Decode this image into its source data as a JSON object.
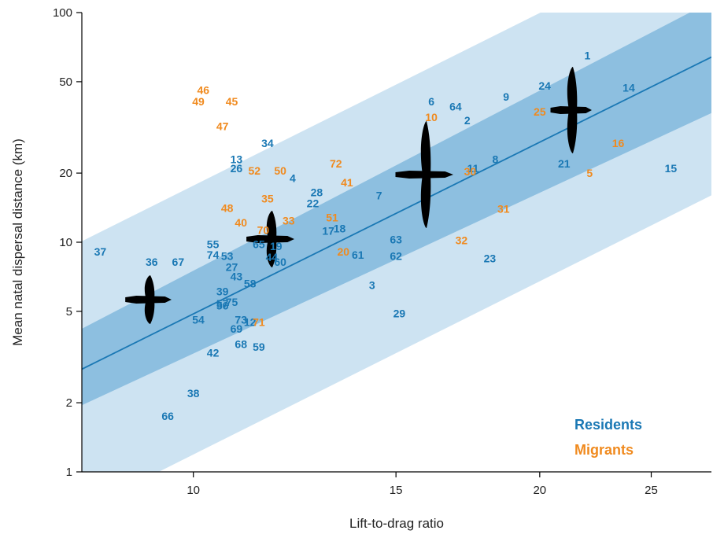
{
  "chart_data": {
    "type": "scatter",
    "title": "",
    "xlabel": "Lift-to-drag ratio",
    "ylabel": "Mean natal dispersal distance (km)",
    "x_scale": "log",
    "y_scale": "log",
    "xlim": [
      8.0,
      28.2
    ],
    "ylim": [
      1,
      100
    ],
    "x_ticks": [
      10,
      15,
      20,
      25
    ],
    "y_ticks": [
      1,
      2,
      5,
      10,
      20,
      50,
      100
    ],
    "grid": false,
    "legend_position": "bottom-right",
    "colors": {
      "residents": "#1a78b4",
      "migrants": "#f08a1e",
      "fit_line": "#1a78b4",
      "band_inner": "#8dbfe0",
      "band_outer": "#cde3f2",
      "silhouette": "#000000"
    },
    "fit": {
      "x": [
        8.0,
        28.2
      ],
      "y": [
        2.8,
        64.0
      ]
    },
    "confidence_band": {
      "x": [
        8.0,
        28.2
      ],
      "lower": [
        1.95,
        36.5
      ],
      "upper": [
        4.2,
        112.0
      ]
    },
    "prediction_band": {
      "x": [
        8.0,
        28.2
      ],
      "lower": [
        0.68,
        16.0
      ],
      "upper": [
        10.1,
        235.0
      ]
    },
    "series": [
      {
        "name": "Residents",
        "points": [
          {
            "label": "1",
            "x": 22.0,
            "y": 65
          },
          {
            "label": "14",
            "x": 23.9,
            "y": 47
          },
          {
            "label": "24",
            "x": 20.2,
            "y": 48
          },
          {
            "label": "9",
            "x": 18.7,
            "y": 43
          },
          {
            "label": "6",
            "x": 16.1,
            "y": 41
          },
          {
            "label": "64",
            "x": 16.9,
            "y": 39
          },
          {
            "label": "2",
            "x": 17.3,
            "y": 34
          },
          {
            "label": "8",
            "x": 18.3,
            "y": 23
          },
          {
            "label": "21",
            "x": 21.0,
            "y": 22
          },
          {
            "label": "11",
            "x": 17.5,
            "y": 21
          },
          {
            "label": "15",
            "x": 26.0,
            "y": 21
          },
          {
            "label": "34",
            "x": 11.6,
            "y": 27
          },
          {
            "label": "13",
            "x": 10.9,
            "y": 23
          },
          {
            "label": "26",
            "x": 10.9,
            "y": 21
          },
          {
            "label": "4",
            "x": 12.2,
            "y": 19
          },
          {
            "label": "28",
            "x": 12.8,
            "y": 16.5
          },
          {
            "label": "22",
            "x": 12.7,
            "y": 14.8
          },
          {
            "label": "7",
            "x": 14.5,
            "y": 16
          },
          {
            "label": "17",
            "x": 13.1,
            "y": 11.2
          },
          {
            "label": "18",
            "x": 13.4,
            "y": 11.5
          },
          {
            "label": "63",
            "x": 15.0,
            "y": 10.3
          },
          {
            "label": "62",
            "x": 15.0,
            "y": 8.7
          },
          {
            "label": "61",
            "x": 13.9,
            "y": 8.8
          },
          {
            "label": "3",
            "x": 14.3,
            "y": 6.5
          },
          {
            "label": "29",
            "x": 15.1,
            "y": 4.9
          },
          {
            "label": "23",
            "x": 18.1,
            "y": 8.5
          },
          {
            "label": "55",
            "x": 10.4,
            "y": 9.8
          },
          {
            "label": "74",
            "x": 10.4,
            "y": 8.8
          },
          {
            "label": "53",
            "x": 10.7,
            "y": 8.7
          },
          {
            "label": "27",
            "x": 10.8,
            "y": 7.8
          },
          {
            "label": "65",
            "x": 11.4,
            "y": 9.8
          },
          {
            "label": "19",
            "x": 11.8,
            "y": 9.6
          },
          {
            "label": "44",
            "x": 11.7,
            "y": 8.6
          },
          {
            "label": "60",
            "x": 11.9,
            "y": 8.2
          },
          {
            "label": "43",
            "x": 10.9,
            "y": 7.1
          },
          {
            "label": "58",
            "x": 11.2,
            "y": 6.6
          },
          {
            "label": "37",
            "x": 8.3,
            "y": 9.1
          },
          {
            "label": "36",
            "x": 9.2,
            "y": 8.2
          },
          {
            "label": "67",
            "x": 9.7,
            "y": 8.2
          },
          {
            "label": "39",
            "x": 10.6,
            "y": 6.1
          },
          {
            "label": "57",
            "x": 10.6,
            "y": 5.4
          },
          {
            "label": "75",
            "x": 10.8,
            "y": 5.5
          },
          {
            "label": "56",
            "x": 10.6,
            "y": 5.3
          },
          {
            "label": "54",
            "x": 10.1,
            "y": 4.6
          },
          {
            "label": "73",
            "x": 11.0,
            "y": 4.6
          },
          {
            "label": "12",
            "x": 11.2,
            "y": 4.5
          },
          {
            "label": "69",
            "x": 10.9,
            "y": 4.2
          },
          {
            "label": "68",
            "x": 11.0,
            "y": 3.6
          },
          {
            "label": "59",
            "x": 11.4,
            "y": 3.5
          },
          {
            "label": "42",
            "x": 10.4,
            "y": 3.3
          },
          {
            "label": "38",
            "x": 10.0,
            "y": 2.2
          },
          {
            "label": "66",
            "x": 9.5,
            "y": 1.75
          }
        ]
      },
      {
        "name": "Migrants",
        "points": [
          {
            "label": "46",
            "x": 10.2,
            "y": 46
          },
          {
            "label": "49",
            "x": 10.1,
            "y": 41
          },
          {
            "label": "45",
            "x": 10.8,
            "y": 41
          },
          {
            "label": "47",
            "x": 10.6,
            "y": 32
          },
          {
            "label": "10",
            "x": 16.1,
            "y": 35
          },
          {
            "label": "25",
            "x": 20.0,
            "y": 37
          },
          {
            "label": "16",
            "x": 23.4,
            "y": 27
          },
          {
            "label": "5",
            "x": 22.1,
            "y": 20
          },
          {
            "label": "30",
            "x": 17.4,
            "y": 20.3
          },
          {
            "label": "31",
            "x": 18.6,
            "y": 14
          },
          {
            "label": "32",
            "x": 17.1,
            "y": 10.2
          },
          {
            "label": "72",
            "x": 13.3,
            "y": 22
          },
          {
            "label": "41",
            "x": 13.6,
            "y": 18.2
          },
          {
            "label": "52",
            "x": 11.3,
            "y": 20.5
          },
          {
            "label": "50",
            "x": 11.9,
            "y": 20.5
          },
          {
            "label": "35",
            "x": 11.6,
            "y": 15.5
          },
          {
            "label": "51",
            "x": 13.2,
            "y": 12.8
          },
          {
            "label": "33",
            "x": 12.1,
            "y": 12.4
          },
          {
            "label": "48",
            "x": 10.7,
            "y": 14.1
          },
          {
            "label": "40",
            "x": 11.0,
            "y": 12.2
          },
          {
            "label": "70",
            "x": 11.5,
            "y": 11.3
          },
          {
            "label": "20",
            "x": 13.5,
            "y": 9.1
          },
          {
            "label": "71",
            "x": 11.4,
            "y": 4.5
          }
        ]
      }
    ],
    "legend": [
      "Residents",
      "Migrants"
    ]
  }
}
